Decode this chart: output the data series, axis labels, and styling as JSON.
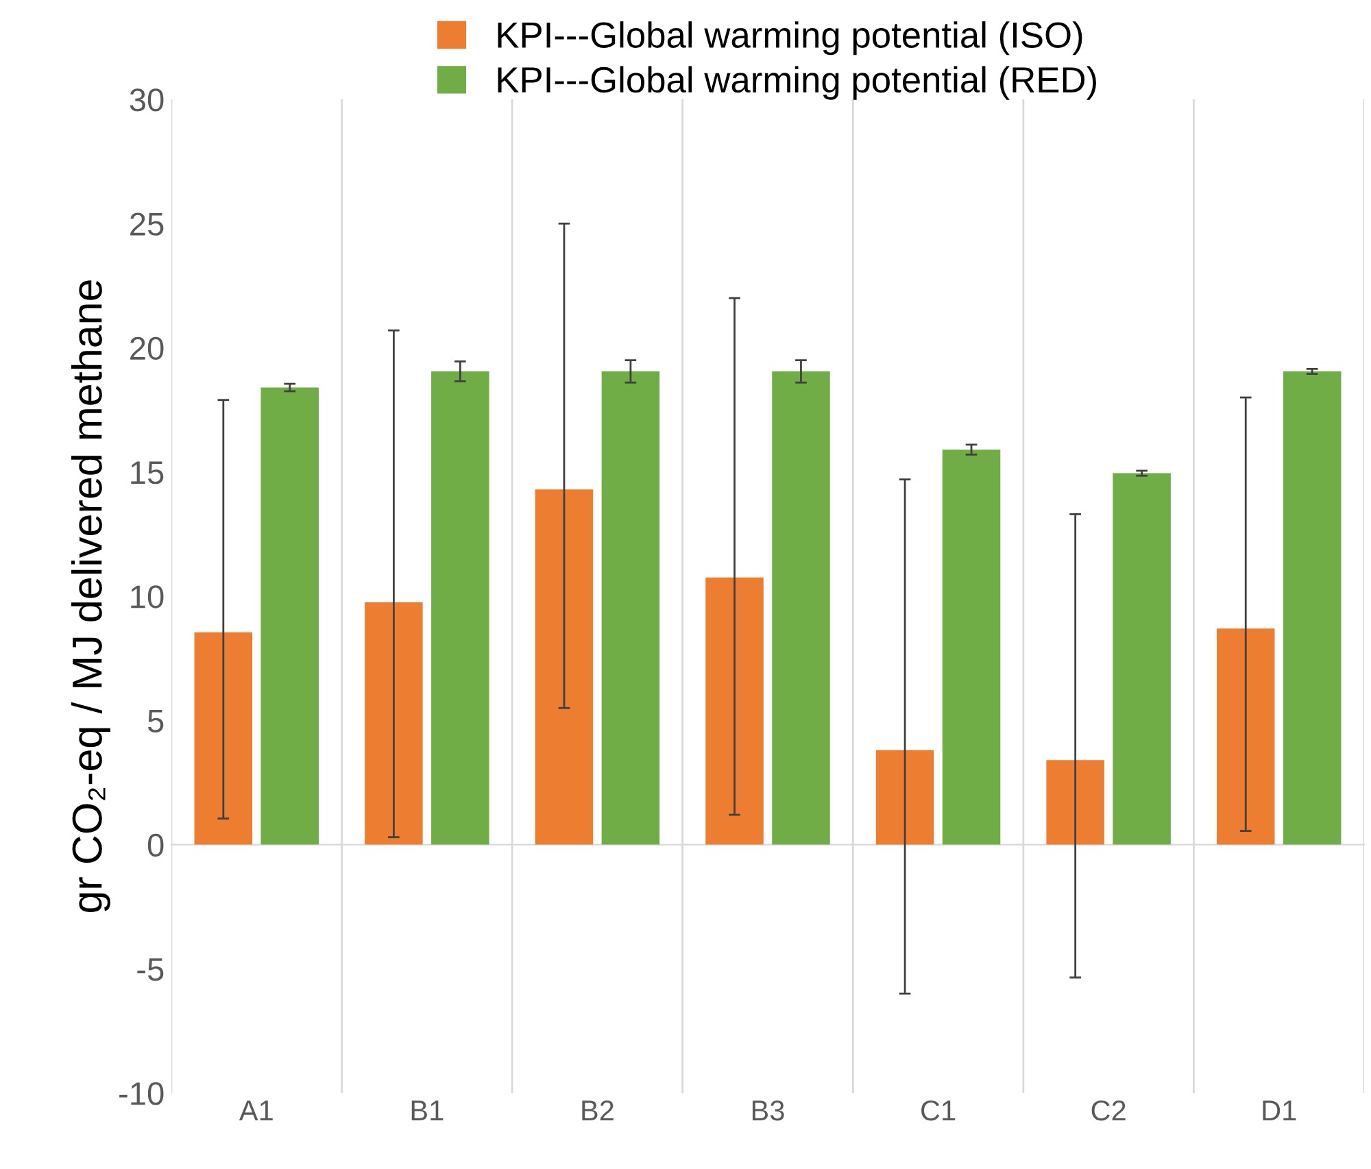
{
  "chart_data": {
    "type": "bar",
    "ylabel": "gr CO₂-eq / MJ delivered methane",
    "categories": [
      "A1",
      "B1",
      "B2",
      "B3",
      "C1",
      "C2",
      "D1"
    ],
    "series": [
      {
        "name": "KPI---Global warming potential (ISO)",
        "color": "#ed7d31",
        "values": [
          8.55,
          9.75,
          14.3,
          10.75,
          3.8,
          3.4,
          8.7
        ],
        "errors": [
          [
            1.05,
            17.9
          ],
          [
            0.3,
            20.7
          ],
          [
            5.5,
            25.0
          ],
          [
            1.2,
            22.0
          ],
          [
            -6.0,
            14.7
          ],
          [
            -5.35,
            13.3
          ],
          [
            0.55,
            18.0
          ]
        ]
      },
      {
        "name": "KPI---Global warming potential (RED)",
        "color": "#70ad47",
        "values": [
          18.4,
          19.05,
          19.05,
          19.05,
          15.9,
          14.95,
          19.05
        ],
        "errors": [
          0.15,
          0.4,
          0.45,
          0.45,
          0.2,
          0.1,
          0.1
        ]
      }
    ],
    "ylim": [
      -10,
      30
    ],
    "yticks": [
      -10,
      -5,
      0,
      5,
      10,
      15,
      20,
      25,
      30
    ],
    "grid": "x",
    "legend": "top"
  }
}
